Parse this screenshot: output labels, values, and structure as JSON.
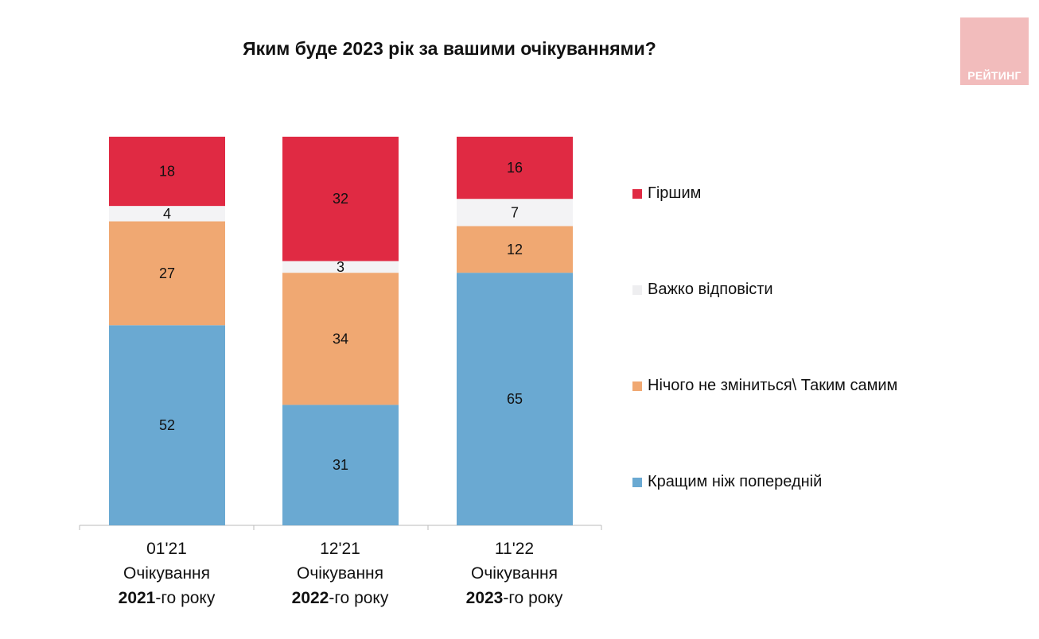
{
  "chart_data": {
    "type": "bar",
    "stacked": true,
    "title": "Яким буде 2023 рік за вашими очікуваннями?",
    "categories": [
      {
        "date": "01'21",
        "line2": "Очікування",
        "year": "2021",
        "suffix": "-го року"
      },
      {
        "date": "12'21",
        "line2": "Очікування",
        "year": "2022",
        "suffix": "-го року"
      },
      {
        "date": "11'22",
        "line2": "Очікування",
        "year": "2023",
        "suffix": "-го року"
      }
    ],
    "series": [
      {
        "name": "Кращим ніж попередній",
        "color": "#6aa9d2",
        "values": [
          52,
          31,
          65
        ]
      },
      {
        "name": "Нічого не зміниться\\ Таким самим",
        "color": "#f0a872",
        "values": [
          27,
          34,
          12
        ]
      },
      {
        "name": "Важко відповісти",
        "color": "#f3f3f5",
        "values": [
          4,
          3,
          7
        ]
      },
      {
        "name": "Гіршим",
        "color": "#e02a43",
        "values": [
          18,
          32,
          16
        ]
      }
    ],
    "legend_position": "right",
    "grid": false
  },
  "logo_text": "РЕЙТИНГ"
}
